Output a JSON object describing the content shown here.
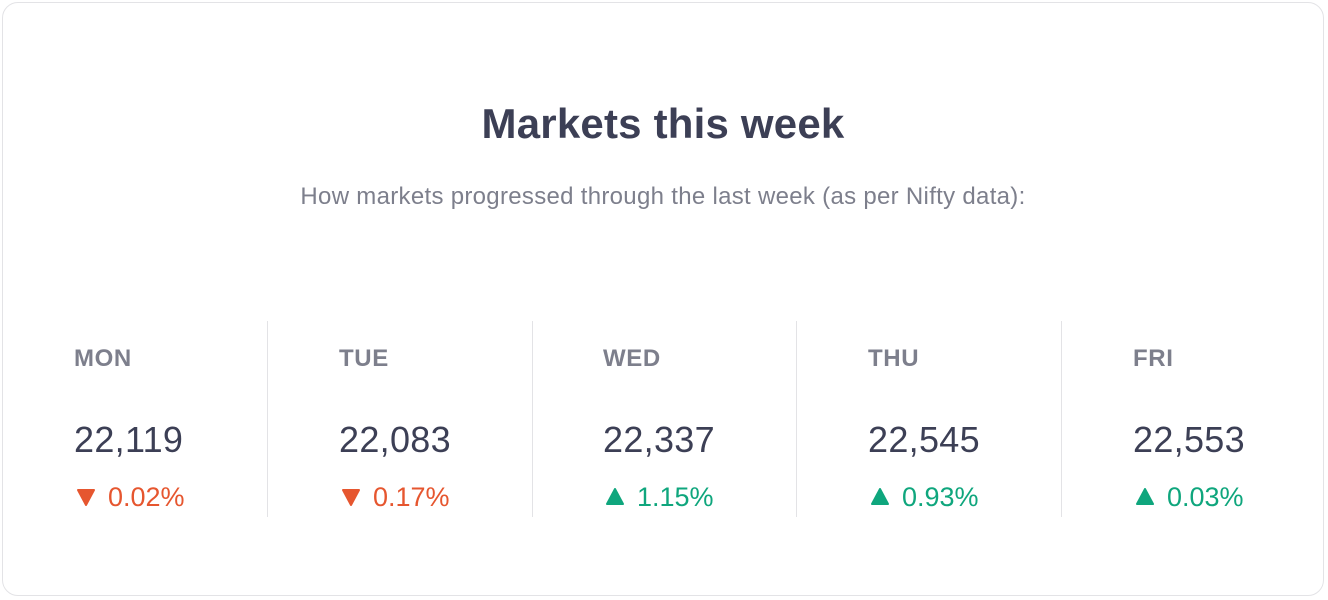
{
  "header": {
    "title": "Markets this week",
    "subtitle": "How markets progressed through the last week (as per Nifty data):"
  },
  "colors": {
    "down": "#e6562f",
    "up": "#0fa67d",
    "text_primary": "#3c3f55",
    "text_secondary": "#7d7f8c"
  },
  "days": [
    {
      "label": "MON",
      "value": "22,119",
      "change": "0.02%",
      "direction": "down",
      "icon": "triangle-down-icon"
    },
    {
      "label": "TUE",
      "value": "22,083",
      "change": "0.17%",
      "direction": "down",
      "icon": "triangle-down-icon"
    },
    {
      "label": "WED",
      "value": "22,337",
      "change": "1.15%",
      "direction": "up",
      "icon": "triangle-up-icon"
    },
    {
      "label": "THU",
      "value": "22,545",
      "change": "0.93%",
      "direction": "up",
      "icon": "triangle-up-icon"
    },
    {
      "label": "FRI",
      "value": "22,553",
      "change": "0.03%",
      "direction": "up",
      "icon": "triangle-up-icon"
    }
  ]
}
